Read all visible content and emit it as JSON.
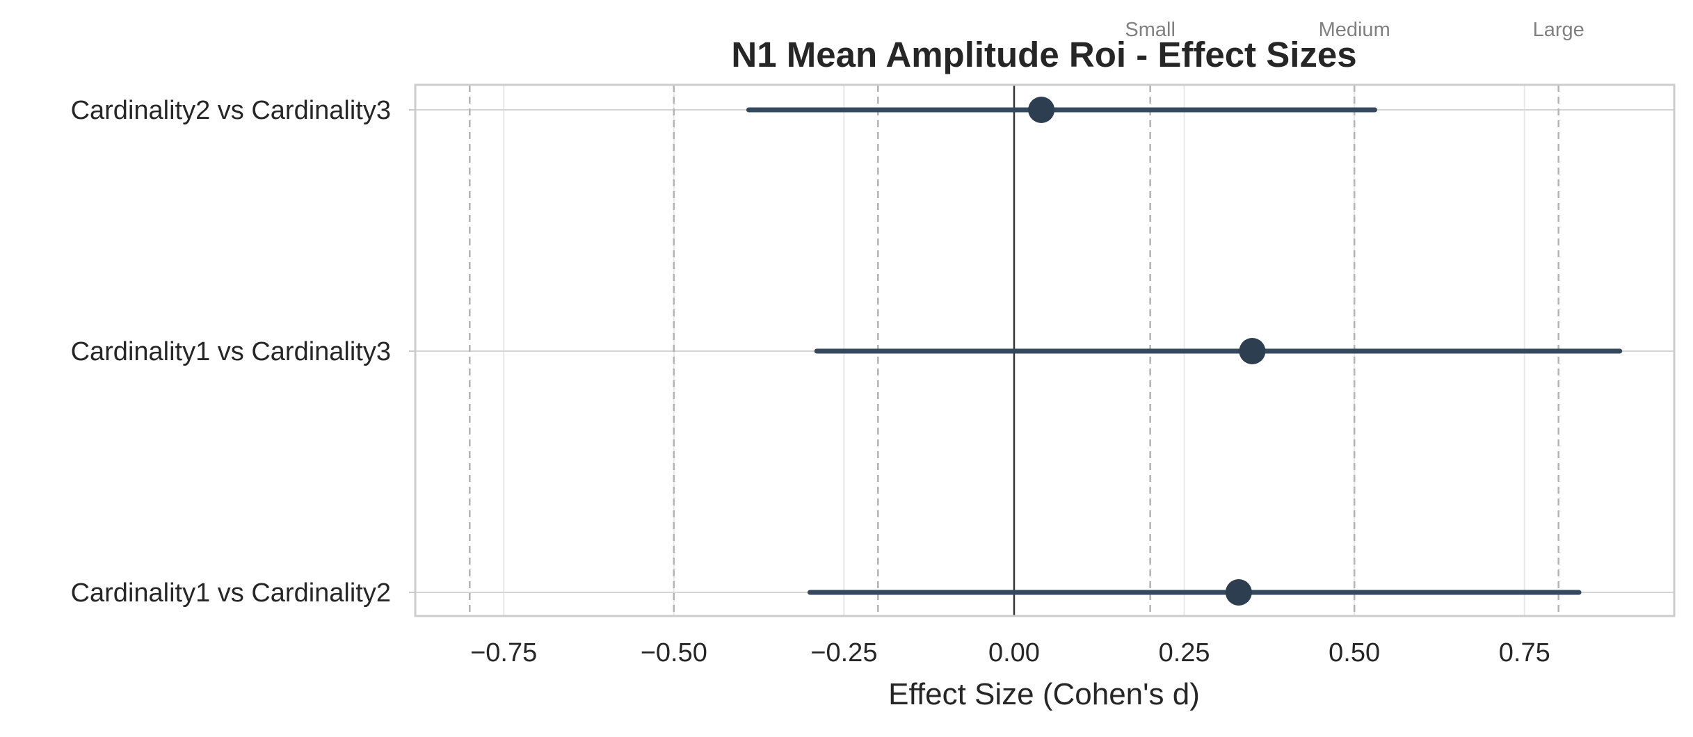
{
  "chart_data": {
    "type": "forest",
    "title": "N1 Mean Amplitude Roi - Effect Sizes",
    "xlabel": "Effect Size (Cohen's d)",
    "ylabel": "",
    "xlim": [
      -0.88,
      0.97
    ],
    "x_ticks": [
      -0.75,
      -0.5,
      -0.25,
      0.0,
      0.25,
      0.5,
      0.75
    ],
    "x_tick_labels": [
      "−0.75",
      "−0.50",
      "−0.25",
      "0.00",
      "0.25",
      "0.50",
      "0.75"
    ],
    "grid": true,
    "zero_line": 0.0,
    "comparisons": [
      {
        "label": "Cardinality2 vs Cardinality3",
        "d": 0.04,
        "ci_low": -0.39,
        "ci_high": 0.53
      },
      {
        "label": "Cardinality1 vs Cardinality3",
        "d": 0.35,
        "ci_low": -0.29,
        "ci_high": 0.89
      },
      {
        "label": "Cardinality1 vs Cardinality2",
        "d": 0.33,
        "ci_low": -0.3,
        "ci_high": 0.83
      }
    ],
    "reference_lines": [
      {
        "label": "Small",
        "values": [
          -0.2,
          0.2
        ]
      },
      {
        "label": "Medium",
        "values": [
          -0.5,
          0.5
        ]
      },
      {
        "label": "Large",
        "values": [
          -0.8,
          0.8
        ]
      }
    ],
    "colors": {
      "point": "#2c3e50",
      "ci_line": "#34495e",
      "zero_line": "#333333",
      "reference_line": "#b3b3b3",
      "reference_text": "#808080",
      "grid": "#e8e8e8",
      "frame": "#cccccc",
      "text": "#262626"
    }
  }
}
